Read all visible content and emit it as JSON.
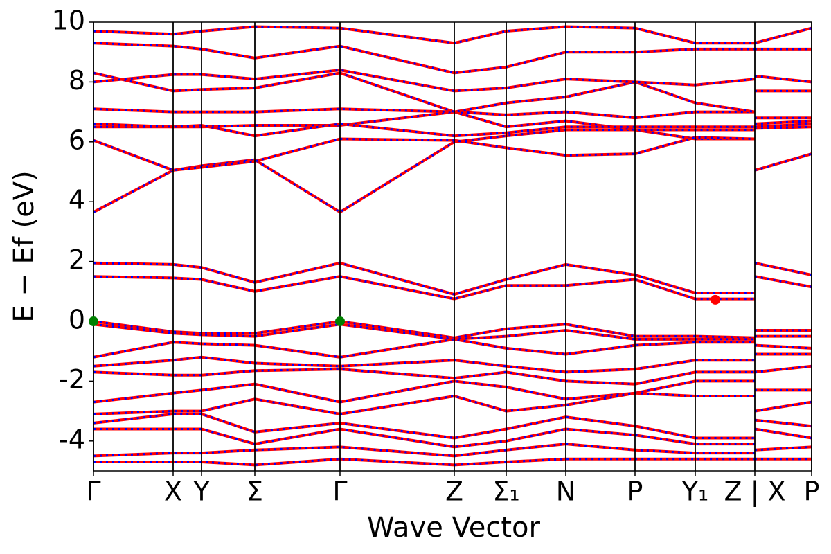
{
  "chart_data": {
    "type": "line",
    "xlabel": "Wave Vector",
    "ylabel": "E − Ef (eV)",
    "xlim": [
      0,
      10.37
    ],
    "ylim": [
      -5,
      10
    ],
    "yticks": [
      -4,
      -2,
      0,
      2,
      4,
      6,
      8,
      10
    ],
    "xticks": [
      {
        "value": 0,
        "label": "Γ"
      },
      {
        "value": 1.15,
        "label": "X"
      },
      {
        "value": 1.56,
        "label": "Y"
      },
      {
        "value": 2.33,
        "label": "Σ"
      },
      {
        "value": 3.56,
        "label": "Γ"
      },
      {
        "value": 5.21,
        "label": "Z"
      },
      {
        "value": 5.96,
        "label": "Σ₁"
      },
      {
        "value": 6.82,
        "label": "N"
      },
      {
        "value": 7.82,
        "label": "P"
      },
      {
        "value": 8.69,
        "label": "Y₁"
      },
      {
        "value": 9.55,
        "label": "Z | X"
      },
      {
        "value": 10.37,
        "label": "P"
      }
    ],
    "grid": true,
    "color": "#ff0000",
    "dash_color": "#0000ff",
    "x": [
      0,
      1.15,
      1.56,
      2.33,
      3.56,
      5.21,
      5.96,
      6.82,
      7.82,
      8.69,
      9.55,
      9.55,
      9.55,
      10.37
    ],
    "series": [
      {
        "values": [
          3.65,
          5.05,
          5.2,
          5.4,
          3.65,
          6.0,
          6.2,
          6.4,
          6.4,
          6.1,
          6.1,
          null,
          5.05,
          5.6
        ]
      },
      {
        "values": [
          6.05,
          5.05,
          5.15,
          5.35,
          6.1,
          6.05,
          5.8,
          5.55,
          5.6,
          6.15,
          6.1,
          null,
          6.45,
          6.5
        ]
      },
      {
        "values": [
          6.5,
          6.5,
          6.5,
          6.55,
          6.55,
          7.0,
          6.5,
          6.7,
          6.4,
          6.4,
          6.4,
          null,
          6.5,
          6.6
        ]
      },
      {
        "values": [
          6.6,
          6.5,
          6.55,
          6.2,
          6.6,
          6.2,
          6.3,
          6.5,
          6.5,
          6.5,
          6.5,
          null,
          6.6,
          6.7
        ]
      },
      {
        "values": [
          7.1,
          7.0,
          7.0,
          7.0,
          7.1,
          7.0,
          6.9,
          7.0,
          6.8,
          7.0,
          7.0,
          null,
          6.8,
          6.8
        ]
      },
      {
        "values": [
          8.3,
          7.7,
          7.75,
          7.8,
          8.3,
          7.0,
          7.3,
          7.5,
          8.0,
          7.3,
          7.0,
          null,
          7.7,
          7.7
        ]
      },
      {
        "values": [
          8.0,
          8.25,
          8.25,
          8.1,
          8.4,
          7.7,
          7.8,
          8.1,
          8.0,
          7.9,
          8.1,
          null,
          8.2,
          8.0
        ]
      },
      {
        "values": [
          9.3,
          9.2,
          9.1,
          8.8,
          9.2,
          8.3,
          8.5,
          9.0,
          9.0,
          9.1,
          9.1,
          null,
          9.1,
          9.1
        ]
      },
      {
        "values": [
          9.7,
          9.6,
          9.7,
          9.85,
          9.8,
          9.3,
          9.7,
          9.85,
          9.8,
          9.3,
          9.3,
          null,
          9.3,
          9.8
        ]
      },
      {
        "values": [
          1.5,
          1.45,
          1.4,
          1.0,
          1.5,
          0.75,
          1.2,
          1.2,
          1.4,
          0.75,
          0.75,
          null,
          1.5,
          1.15
        ]
      },
      {
        "values": [
          1.95,
          1.9,
          1.8,
          1.3,
          1.95,
          0.9,
          1.4,
          1.9,
          1.55,
          0.95,
          0.95,
          null,
          1.95,
          1.55
        ]
      },
      {
        "values": [
          0,
          -0.35,
          -0.4,
          -0.4,
          0,
          -0.55,
          -0.25,
          -0.1,
          -0.5,
          -0.5,
          -0.55,
          null,
          -0.3,
          -0.3
        ]
      },
      {
        "values": [
          -0.1,
          -0.4,
          -0.45,
          -0.5,
          -0.1,
          -0.6,
          -0.5,
          -0.3,
          -0.6,
          -0.6,
          -0.6,
          null,
          -0.5,
          -0.5
        ]
      },
      {
        "values": [
          -1.2,
          -0.7,
          -0.75,
          -0.8,
          -1.2,
          -0.6,
          -0.9,
          -1.1,
          -0.8,
          -0.7,
          -0.7,
          null,
          -0.8,
          -0.9
        ]
      },
      {
        "values": [
          -1.5,
          -1.3,
          -1.2,
          -1.4,
          -1.5,
          -1.3,
          -1.5,
          -1.7,
          -1.6,
          -1.3,
          -1.3,
          null,
          -1.1,
          -1.1
        ]
      },
      {
        "values": [
          -1.7,
          -1.8,
          -1.8,
          -1.65,
          -1.6,
          -1.9,
          -1.7,
          -2.0,
          -2.1,
          -1.7,
          -1.7,
          null,
          -1.7,
          -1.5
        ]
      },
      {
        "values": [
          -2.7,
          -2.4,
          -2.3,
          -2.1,
          -2.7,
          -2.0,
          -2.2,
          -2.6,
          -2.4,
          -2.0,
          -2.0,
          null,
          -2.3,
          -2.3
        ]
      },
      {
        "values": [
          -3.1,
          -3.0,
          -3.0,
          -2.6,
          -3.1,
          -2.5,
          -3.0,
          -2.8,
          -2.4,
          -2.5,
          -2.5,
          null,
          -3.0,
          -2.7
        ]
      },
      {
        "values": [
          -3.4,
          -3.1,
          -3.1,
          -3.7,
          -3.4,
          -3.9,
          -3.6,
          -3.2,
          -3.5,
          -3.9,
          -3.9,
          null,
          -3.3,
          -3.5
        ]
      },
      {
        "values": [
          -3.6,
          -3.6,
          -3.6,
          -4.1,
          -3.6,
          -4.2,
          -4.0,
          -3.6,
          -3.8,
          -4.1,
          -4.1,
          null,
          -3.6,
          -3.9
        ]
      },
      {
        "values": [
          -4.5,
          -4.4,
          -4.4,
          -4.3,
          -4.2,
          -4.5,
          -4.3,
          -4.1,
          -4.3,
          -4.4,
          -4.4,
          null,
          -4.3,
          -4.2
        ]
      },
      {
        "values": [
          -4.7,
          -4.7,
          -4.7,
          -4.8,
          -4.6,
          -4.8,
          -4.7,
          -4.6,
          -4.6,
          -4.6,
          -4.6,
          null,
          -4.6,
          -4.6
        ]
      }
    ],
    "points": [
      {
        "x": 0,
        "y": 0,
        "color": "#008000"
      },
      {
        "x": 3.56,
        "y": 0,
        "color": "#008000"
      },
      {
        "x": 8.98,
        "y": 0.72,
        "color": "#ff0000"
      }
    ]
  }
}
